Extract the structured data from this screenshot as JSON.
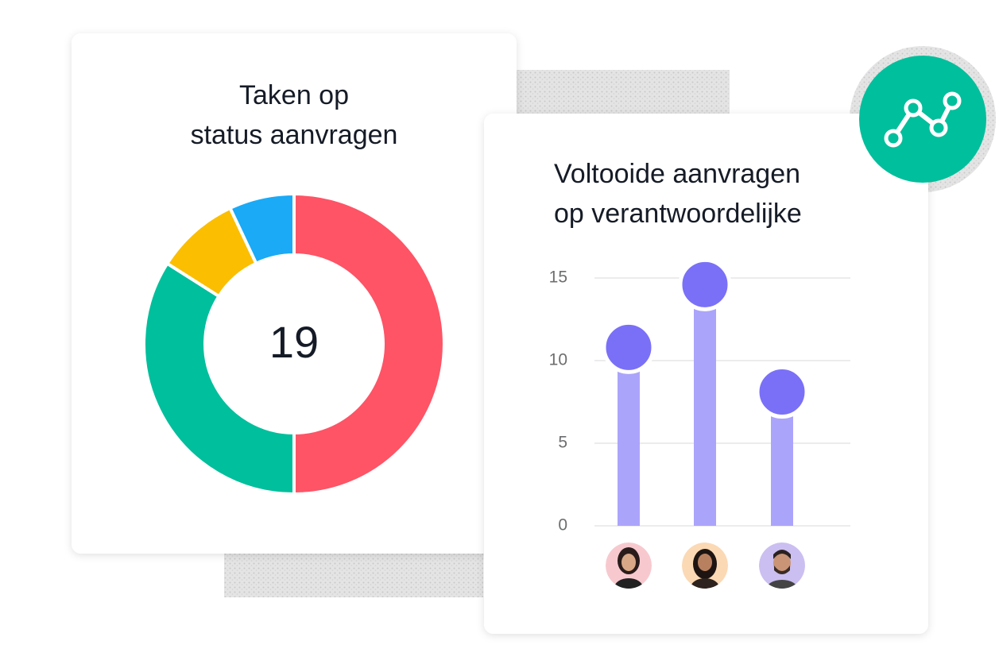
{
  "chart_data": [
    {
      "type": "donut",
      "title": [
        "Taken op",
        "status aanvragen"
      ],
      "center_label": "19",
      "values": [
        50,
        34,
        9,
        7
      ],
      "colors": [
        "#fe5466",
        "#00bf9c",
        "#fbbe00",
        "#1aaaf6"
      ]
    },
    {
      "type": "lollipop",
      "title": [
        "Voltooide aanvragen",
        "op verantwoordelijke"
      ],
      "categories": [
        null,
        null,
        null
      ],
      "values": [
        10.8,
        14.6,
        8.1
      ],
      "bar_color": "#aba4fb",
      "dot_color": "#7a70f7",
      "ylim": [
        0,
        15
      ],
      "yticks": [
        0,
        5,
        10,
        15
      ],
      "grid": true
    }
  ]
}
